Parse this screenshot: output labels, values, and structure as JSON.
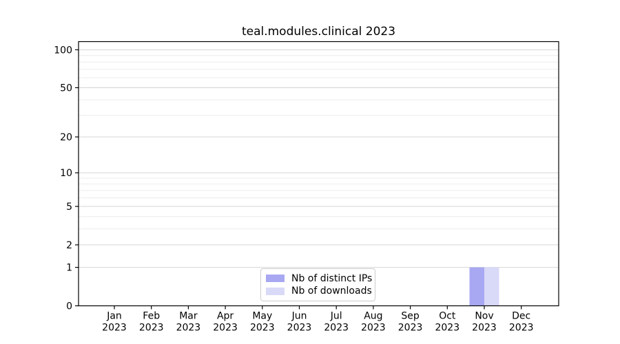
{
  "title": "teal.modules.clinical 2023",
  "legend": {
    "entries": [
      {
        "label": "Nb of distinct IPs",
        "color": "#a8a8f2"
      },
      {
        "label": "Nb of downloads",
        "color": "#d9d9f8"
      }
    ]
  },
  "chart_data": {
    "type": "bar",
    "title": "teal.modules.clinical 2023",
    "categories": [
      "Jan 2023",
      "Feb 2023",
      "Mar 2023",
      "Apr 2023",
      "May 2023",
      "Jun 2023",
      "Jul 2023",
      "Aug 2023",
      "Sep 2023",
      "Oct 2023",
      "Nov 2023",
      "Dec 2023"
    ],
    "series": [
      {
        "name": "Nb of distinct IPs",
        "color": "#a8a8f2",
        "values": [
          0,
          0,
          0,
          0,
          0,
          0,
          0,
          0,
          0,
          0,
          1,
          0
        ]
      },
      {
        "name": "Nb of downloads",
        "color": "#d9d9f8",
        "values": [
          0,
          0,
          0,
          0,
          0,
          0,
          0,
          0,
          0,
          0,
          1,
          0
        ]
      }
    ],
    "xlabel": "",
    "ylabel": "",
    "yscale": "log1p",
    "ylim": [
      0,
      116
    ],
    "yticks": [
      0,
      1,
      2,
      5,
      10,
      20,
      50,
      100
    ],
    "minor_yticks": [
      3,
      4,
      6,
      7,
      8,
      9,
      30,
      40,
      60,
      70,
      80,
      90
    ],
    "grid": true,
    "legend_position": "lower-center-inside",
    "colors": {
      "major_grid": "#d4d4d4",
      "minor_grid": "#ececec",
      "spine": "#000000",
      "legend_border": "#cccccc"
    }
  }
}
